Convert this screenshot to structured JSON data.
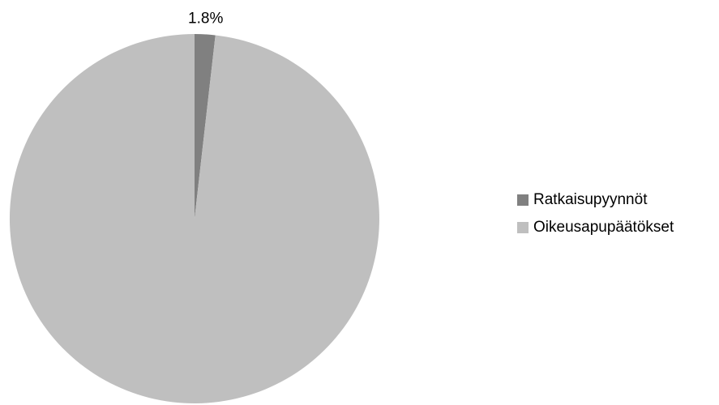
{
  "chart_data": {
    "type": "pie",
    "title": "",
    "start_angle_deg": 0,
    "direction": "clockwise",
    "categories": [
      "Ratkaisupyynnöt",
      "Oikeusapupäätökset"
    ],
    "values": [
      1.8,
      98.2
    ],
    "data_labels": [
      "1.8%",
      ""
    ],
    "colors": [
      "#808080",
      "#bfbfbf"
    ],
    "legend_position": "right"
  },
  "legend": {
    "items": [
      {
        "label": "Ratkaisupyynnöt",
        "color": "#808080",
        "icon": "square-swatch"
      },
      {
        "label": "Oikeusapupäätökset",
        "color": "#bfbfbf",
        "icon": "square-swatch"
      }
    ]
  }
}
